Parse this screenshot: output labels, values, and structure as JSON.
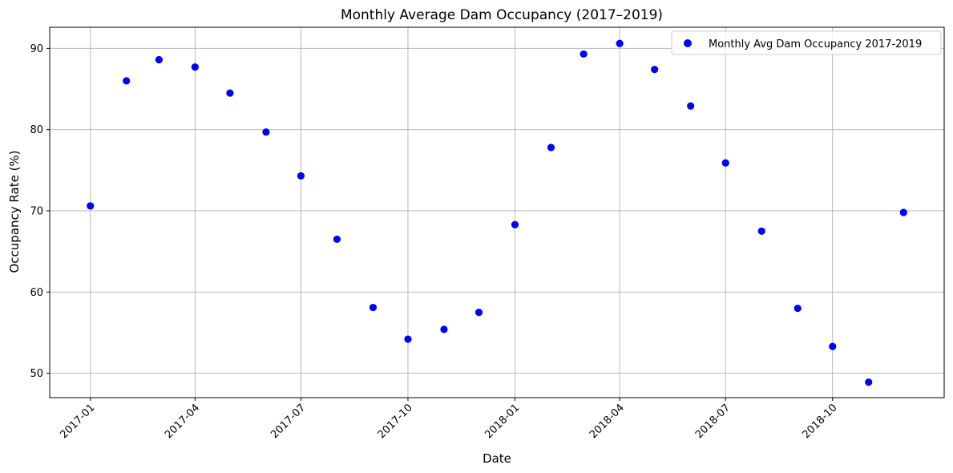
{
  "chart_data": {
    "type": "scatter",
    "title": "Monthly Average Dam Occupancy (2017–2019)",
    "xlabel": "Date",
    "ylabel": "Occupancy Rate (%)",
    "x_tick_labels": [
      "2017-01",
      "2017-04",
      "2017-07",
      "2017-10",
      "2018-01",
      "2018-04",
      "2018-07",
      "2018-10"
    ],
    "y_tick_labels": [
      "50",
      "60",
      "70",
      "80",
      "90"
    ],
    "ylim": [
      47,
      92.6
    ],
    "grid": true,
    "legend_position": "top-right",
    "series": [
      {
        "name": "Monthly Avg Dam Occupancy 2017-2019",
        "color": "#0000ff",
        "marker": "circle",
        "x": [
          "2017-01",
          "2017-02",
          "2017-03",
          "2017-04",
          "2017-05",
          "2017-06",
          "2017-07",
          "2017-08",
          "2017-09",
          "2017-10",
          "2017-11",
          "2017-12",
          "2018-01",
          "2018-02",
          "2018-03",
          "2018-04",
          "2018-05",
          "2018-06",
          "2018-07",
          "2018-08",
          "2018-09",
          "2018-10",
          "2018-11",
          "2018-12"
        ],
        "y": [
          70.6,
          86.0,
          88.6,
          87.7,
          84.5,
          79.7,
          74.3,
          66.5,
          58.1,
          54.2,
          55.4,
          57.5,
          68.3,
          77.8,
          89.3,
          90.6,
          87.4,
          82.9,
          75.9,
          67.5,
          58.0,
          53.3,
          48.9,
          69.8
        ]
      }
    ]
  }
}
